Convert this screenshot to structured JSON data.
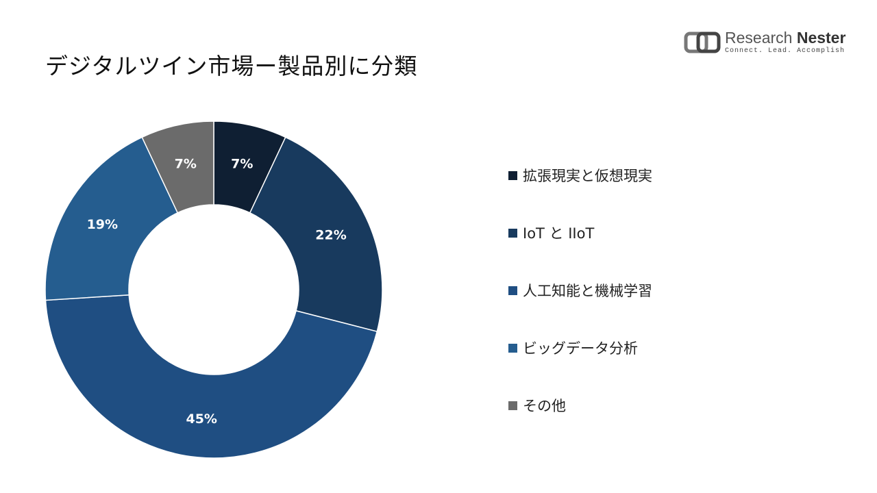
{
  "title": "デジタルツイン市場ー製品別に分類",
  "logo": {
    "name_part1": "Research ",
    "name_part2": "Nester",
    "tagline": "Connect. Lead. Accomplish",
    "icon": "research-nester-logo-icon"
  },
  "chart_data": {
    "type": "pie",
    "donut": true,
    "title": "デジタルツイン市場ー製品別に分類",
    "legend_position": "right",
    "categories": [
      "拡張現実と仮想現実",
      "IoT と IIoT",
      "人工知能と機械学習",
      "ビッグデータ分析",
      "その他"
    ],
    "values": [
      7,
      22,
      45,
      19,
      7
    ],
    "labels": [
      "7%",
      "22%",
      "45%",
      "19%",
      "7%"
    ],
    "colors": [
      "#0f1f33",
      "#183a5e",
      "#1f4e82",
      "#255d8f",
      "#6b6b6b"
    ],
    "label_colors": [
      "#ffffff",
      "#ffffff",
      "#ffffff",
      "#ffffff",
      "#ffffff"
    ]
  }
}
